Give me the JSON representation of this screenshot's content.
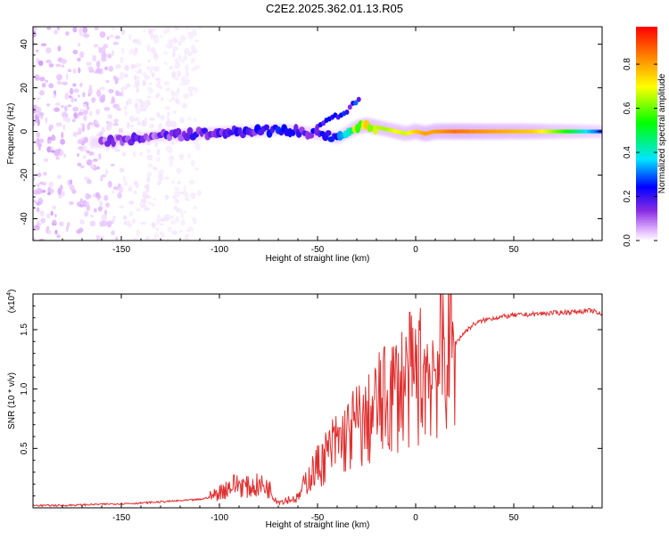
{
  "title": "C2E2.2025.362.01.13.R05",
  "chart_data": [
    {
      "type": "heatmap",
      "xlabel": "Height of straight line (km)",
      "ylabel": "Frequency (Hz)",
      "xlim": [
        -195,
        95
      ],
      "ylim": [
        -50,
        48
      ],
      "xticks": [
        -150,
        -100,
        -50,
        0,
        50
      ],
      "yticks": [
        -40,
        -20,
        0,
        20,
        40
      ],
      "colorbar": {
        "label": "Normalized spectral amplitude",
        "range": [
          0,
          0.97
        ],
        "ticks": [
          0.0,
          0.2,
          0.4,
          0.6,
          0.8
        ],
        "colors": [
          "#ffffff",
          "#e0b3ff",
          "#8a2be2",
          "#0000ff",
          "#00e5ff",
          "#00ff00",
          "#ffff00",
          "#ff8c00",
          "#ff0000"
        ]
      },
      "ridge": {
        "x": [
          -160,
          -150,
          -130,
          -110,
          -90,
          -80,
          -70,
          -60,
          -50,
          -40,
          -30,
          -25,
          -20,
          -15,
          -10,
          -5,
          0,
          5,
          10,
          20,
          40,
          60,
          80,
          95
        ],
        "frequency": [
          -5,
          -4,
          -2,
          -1,
          0,
          0,
          1,
          0,
          -1,
          -3,
          2,
          3,
          2,
          1,
          0,
          -1,
          0,
          -1,
          0,
          0,
          0,
          0,
          0,
          0
        ],
        "amplitude": [
          0.2,
          0.22,
          0.25,
          0.28,
          0.3,
          0.3,
          0.33,
          0.3,
          0.3,
          0.35,
          0.7,
          0.75,
          0.72,
          0.7,
          0.75,
          0.72,
          0.8,
          0.85,
          0.85,
          0.9,
          0.85,
          0.8,
          0.6,
          0.4
        ]
      },
      "branch": {
        "x": [
          -50,
          -45,
          -40,
          -35,
          -30,
          -28
        ],
        "frequency": [
          3,
          5,
          7,
          9,
          14,
          17
        ]
      }
    },
    {
      "type": "line",
      "xlabel": "Height of straight line (km)",
      "ylabel": "SNR (10 * v/v)",
      "scale_note": "(x10",
      "scale_exp": "4",
      "xlim": [
        -195,
        95
      ],
      "ylim": [
        0,
        1.8
      ],
      "xticks": [
        -150,
        -100,
        -50,
        0,
        50
      ],
      "yticks": [
        0.5,
        1.0,
        1.5
      ],
      "series": [
        {
          "name": "SNR",
          "color": "#e03030",
          "x": [
            -195,
            -180,
            -160,
            -140,
            -130,
            -120,
            -110,
            -105,
            -100,
            -95,
            -90,
            -85,
            -80,
            -75,
            -70,
            -65,
            -60,
            -55,
            -50,
            -45,
            -40,
            -35,
            -30,
            -25,
            -20,
            -15,
            -10,
            -5,
            0,
            5,
            10,
            15,
            20,
            25,
            30,
            35,
            40,
            50,
            60,
            70,
            80,
            90,
            95
          ],
          "y": [
            0.02,
            0.02,
            0.03,
            0.04,
            0.05,
            0.06,
            0.07,
            0.09,
            0.13,
            0.18,
            0.2,
            0.17,
            0.19,
            0.17,
            0.05,
            0.07,
            0.08,
            0.25,
            0.35,
            0.45,
            0.55,
            0.6,
            0.7,
            0.7,
            0.85,
            0.9,
            1.0,
            1.05,
            1.1,
            1.15,
            1.2,
            1.3,
            1.38,
            1.48,
            1.55,
            1.58,
            1.6,
            1.62,
            1.63,
            1.64,
            1.65,
            1.66,
            1.62
          ]
        }
      ]
    }
  ]
}
